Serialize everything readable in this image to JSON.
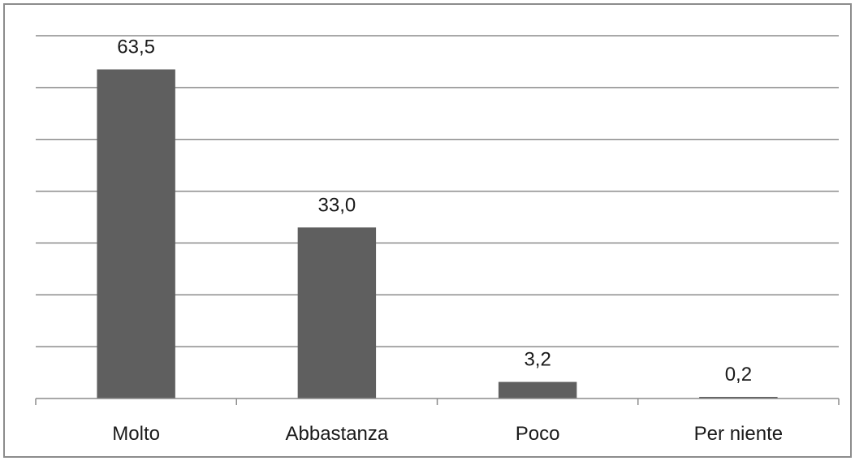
{
  "chart_data": {
    "type": "bar",
    "categories": [
      "Molto",
      "Abbastanza",
      "Poco",
      "Per niente"
    ],
    "values": [
      63.5,
      33.0,
      3.2,
      0.2
    ],
    "value_labels": [
      "63,5",
      "33,0",
      "3,2",
      "0,2"
    ],
    "ylim": [
      0,
      70
    ],
    "y_grid_step": 10,
    "grid": true,
    "legend": "none",
    "title": "",
    "xlabel": "",
    "ylabel": "",
    "colors": {
      "bar": "#5f5f5f",
      "gridline": "#8c8c8c",
      "frame": "#8c8c8c"
    }
  }
}
